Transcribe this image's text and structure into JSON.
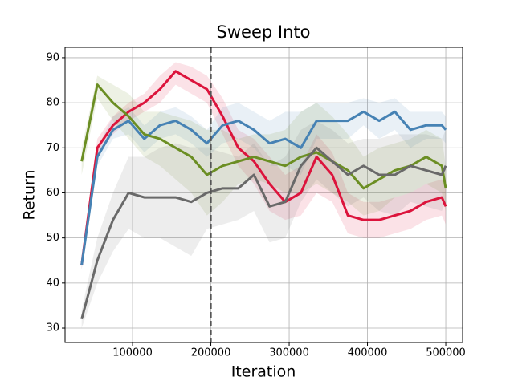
{
  "chart_data": {
    "type": "line",
    "title": "Sweep Into",
    "x_label": "Iteration",
    "y_label": "Return",
    "x": [
      35000,
      55000,
      75000,
      95000,
      115000,
      135000,
      155000,
      175000,
      195000,
      215000,
      235000,
      255000,
      275000,
      295000,
      315000,
      335000,
      355000,
      375000,
      395000,
      415000,
      435000,
      455000,
      475000,
      495000,
      500000
    ],
    "series": [
      {
        "name": "red",
        "color": "#dc143c",
        "values": [
          44,
          70,
          75,
          78,
          80,
          83,
          87,
          85,
          83,
          77,
          70,
          67,
          62,
          58,
          60,
          68,
          64,
          55,
          54,
          54,
          55,
          56,
          58,
          59,
          57
        ],
        "lower": [
          43,
          68,
          73,
          76,
          78,
          80,
          84,
          82,
          80,
          73,
          66,
          62,
          56,
          54,
          55,
          60,
          58,
          51,
          50,
          50,
          51,
          52,
          54,
          55,
          53
        ],
        "upper": [
          46,
          72,
          77,
          80,
          82,
          86,
          89,
          88,
          86,
          81,
          74,
          72,
          68,
          64,
          66,
          73,
          69,
          60,
          58,
          58,
          59,
          60,
          62,
          63,
          61
        ]
      },
      {
        "name": "blue",
        "color": "#4682b4",
        "values": [
          44,
          68,
          74,
          76,
          72,
          75,
          76,
          74,
          71,
          75,
          76,
          74,
          71,
          72,
          70,
          76,
          76,
          76,
          78,
          76,
          78,
          74,
          75,
          75,
          74
        ],
        "lower": [
          43,
          66,
          72,
          73,
          69,
          72,
          73,
          71,
          68,
          71,
          72,
          70,
          66,
          66,
          64,
          72,
          72,
          72,
          75,
          72,
          74,
          70,
          72,
          72,
          71
        ],
        "upper": [
          46,
          70,
          77,
          79,
          75,
          78,
          79,
          77,
          74,
          79,
          80,
          78,
          76,
          78,
          78,
          80,
          80,
          80,
          81,
          80,
          81,
          78,
          78,
          78,
          77
        ]
      },
      {
        "name": "green",
        "color": "#6b8e23",
        "values": [
          67,
          84,
          80,
          77,
          73,
          72,
          70,
          68,
          64,
          66,
          67,
          68,
          67,
          66,
          68,
          69,
          67,
          65,
          61,
          63,
          65,
          66,
          68,
          66,
          61
        ],
        "lower": [
          64,
          81,
          76,
          72,
          68,
          66,
          63,
          60,
          55,
          58,
          62,
          63,
          62,
          60,
          60,
          62,
          60,
          58,
          55,
          56,
          59,
          60,
          62,
          60,
          56
        ],
        "upper": [
          70,
          86,
          84,
          82,
          78,
          78,
          77,
          76,
          74,
          74,
          72,
          73,
          73,
          74,
          78,
          80,
          77,
          73,
          68,
          70,
          71,
          72,
          74,
          72,
          66
        ]
      },
      {
        "name": "gray",
        "color": "#696969",
        "values": [
          32,
          45,
          54,
          60,
          59,
          59,
          59,
          58,
          60,
          61,
          61,
          64,
          57,
          58,
          66,
          70,
          67,
          64,
          66,
          64,
          64,
          66,
          65,
          64,
          66
        ],
        "lower": [
          30,
          40,
          47,
          52,
          50,
          50,
          48,
          46,
          52,
          53,
          54,
          56,
          49,
          50,
          58,
          63,
          60,
          57,
          59,
          56,
          55,
          58,
          57,
          56,
          58
        ],
        "upper": [
          34,
          50,
          60,
          68,
          68,
          70,
          71,
          70,
          70,
          69,
          68,
          71,
          66,
          68,
          74,
          76,
          74,
          71,
          72,
          72,
          73,
          73,
          73,
          72,
          74
        ]
      }
    ],
    "vline": 200000,
    "xlim": [
      13800,
      521500
    ],
    "ylim": [
      26.8,
      92.3
    ],
    "xticks": [
      100000,
      200000,
      300000,
      400000,
      500000
    ],
    "yticks": [
      30,
      40,
      50,
      60,
      70,
      80,
      90
    ],
    "grid": true
  }
}
